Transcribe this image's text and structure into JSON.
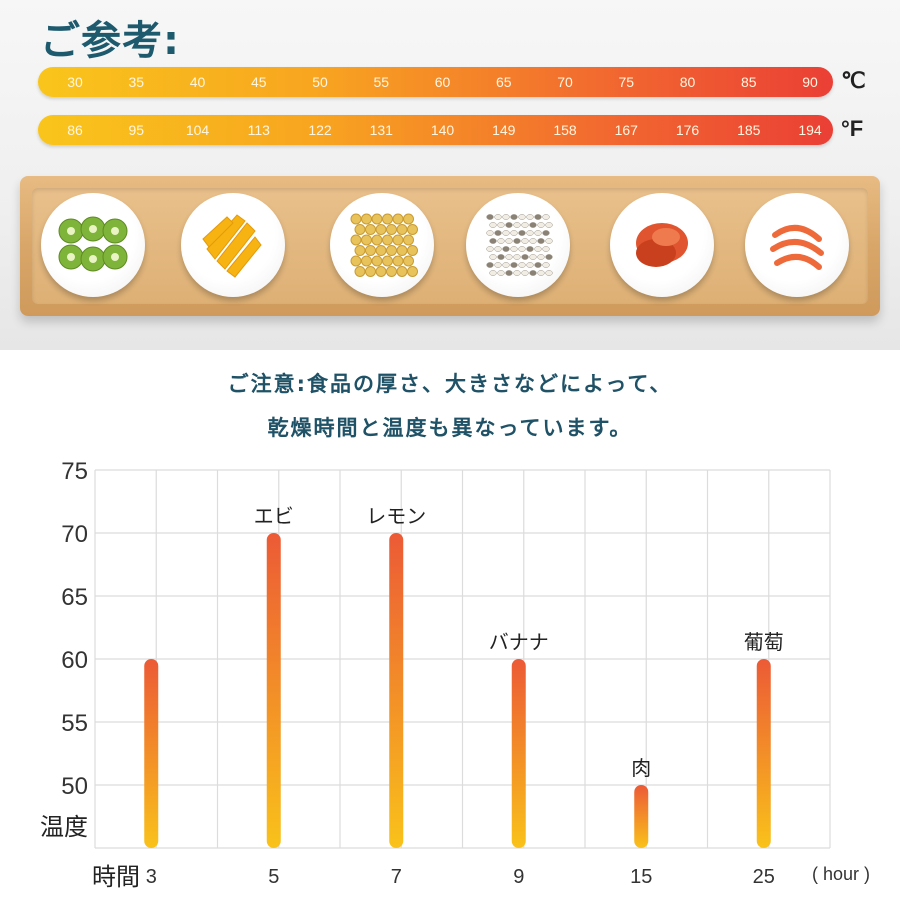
{
  "reference_title": "ご参考:",
  "celsius_scale": {
    "unit": "℃",
    "values": [
      "30",
      "35",
      "40",
      "45",
      "50",
      "55",
      "60",
      "65",
      "70",
      "75",
      "80",
      "85",
      "90"
    ]
  },
  "fahrenheit_scale": {
    "unit": "°F",
    "values": [
      "86",
      "95",
      "104",
      "113",
      "122",
      "131",
      "140",
      "149",
      "158",
      "167",
      "176",
      "185",
      "194"
    ]
  },
  "tray_items": [
    "kiwi-icon",
    "mango-icon",
    "soybean-icon",
    "grain-icon",
    "meat-icon",
    "shrimp-icon"
  ],
  "note": {
    "line1": "ご注意:食品の厚さ、大きさなどによって、",
    "line2": "乾燥時間と温度も異なっています。"
  },
  "chart_data": {
    "type": "bar",
    "categories": [
      "3",
      "5",
      "7",
      "9",
      "15",
      "25"
    ],
    "values": [
      60,
      70,
      70,
      60,
      50,
      60
    ],
    "bar_labels": [
      "",
      "エビ",
      "レモン",
      "バナナ",
      "肉",
      "葡萄"
    ],
    "ylim": [
      45,
      75
    ],
    "yticks": [
      "75",
      "70",
      "65",
      "60",
      "55",
      "50"
    ],
    "ylabel": "温度",
    "xlabel": "時間",
    "xunit": "( hour )",
    "grid": true,
    "colors": {
      "bar_top": "#ec5a36",
      "bar_bottom": "#f9c21a",
      "grid": "#dcdcdc"
    }
  }
}
